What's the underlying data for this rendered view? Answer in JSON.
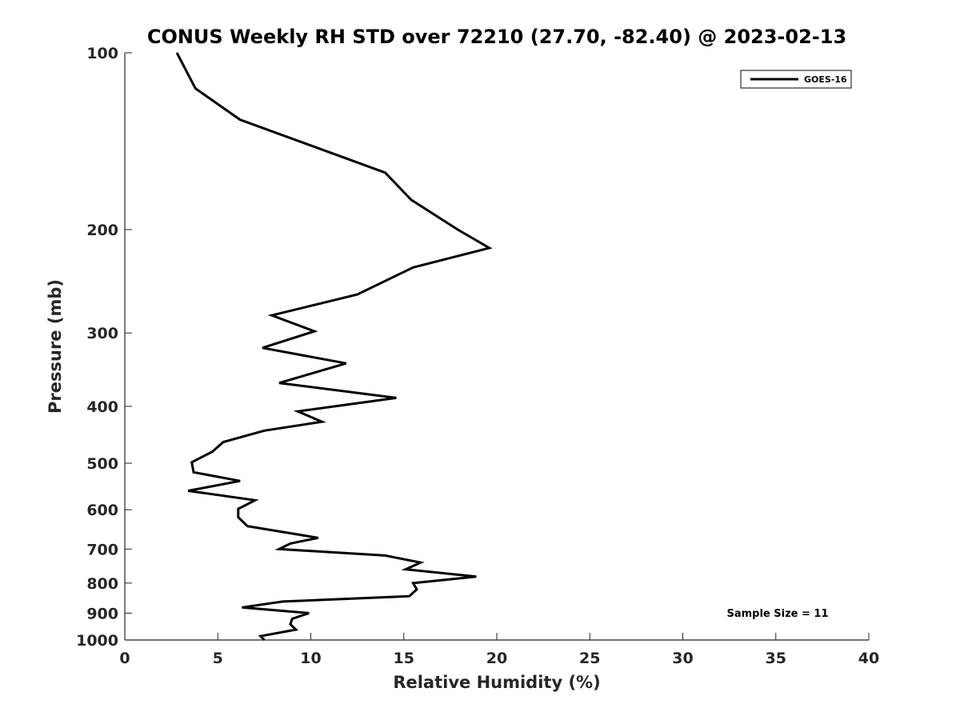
{
  "chart_data": {
    "type": "line",
    "title": "CONUS Weekly RH STD over 72210 (27.70, -82.40) @ 2023-02-13",
    "xlabel": "Relative Humidity (%)",
    "ylabel": "Pressure (mb)",
    "xlim": [
      0,
      40
    ],
    "ylim": [
      100,
      1000
    ],
    "yscale": "log",
    "yreversed": true,
    "x_ticks": [
      0,
      5,
      10,
      15,
      20,
      25,
      30,
      35,
      40
    ],
    "x_tick_labels": [
      "0",
      "5",
      "10",
      "15",
      "20",
      "25",
      "30",
      "35",
      "40"
    ],
    "y_ticks": [
      100,
      200,
      300,
      400,
      500,
      600,
      700,
      800,
      900,
      1000
    ],
    "y_tick_labels": [
      "100",
      "200",
      "300",
      "400",
      "500",
      "600",
      "700",
      "800",
      "900",
      "1000"
    ],
    "legend": {
      "position": "top-right",
      "entries": [
        "GOES-16"
      ]
    },
    "annotation": "Sample Size = 11",
    "series": [
      {
        "name": "GOES-16",
        "color": "#000000",
        "x": [
          2.8,
          3.8,
          6.2,
          14.0,
          15.4,
          17.9,
          19.6,
          15.5,
          12.5,
          7.9,
          10.2,
          7.4,
          11.9,
          8.3,
          14.6,
          9.3,
          10.6,
          7.5,
          5.3,
          4.7,
          3.6,
          3.7,
          6.2,
          3.4,
          7.0,
          6.1,
          6.1,
          6.6,
          10.4,
          8.9,
          8.3,
          14.0,
          15.9,
          15.1,
          18.9,
          15.5,
          15.7,
          15.3,
          8.5,
          6.3,
          9.9,
          9.0,
          8.9,
          9.2,
          7.3,
          7.5
        ],
        "y": [
          100,
          115,
          130,
          160,
          178,
          200,
          215,
          232,
          258,
          280,
          298,
          318,
          338,
          365,
          387,
          408,
          425,
          440,
          460,
          478,
          498,
          518,
          536,
          557,
          578,
          598,
          618,
          640,
          670,
          685,
          700,
          718,
          738,
          758,
          780,
          800,
          820,
          842,
          860,
          880,
          900,
          920,
          940,
          960,
          985,
          1000
        ]
      }
    ]
  }
}
